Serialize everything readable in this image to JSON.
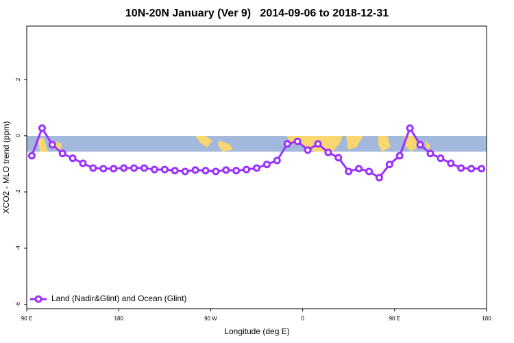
{
  "chart_data": {
    "type": "line",
    "title": "10N-20N January (Ver 9)   2014-09-06 to 2018-12-31",
    "xlabel": "Longitude (deg E)",
    "ylabel": "XCO2 - MLO trend (ppm)",
    "xlim": [
      90,
      540
    ],
    "ylim": [
      -6.15,
      3.9
    ],
    "xticks": [
      {
        "value": 90,
        "label": "90 E"
      },
      {
        "value": 180,
        "label": "180"
      },
      {
        "value": 270,
        "label": "90 W"
      },
      {
        "value": 360,
        "label": "0"
      },
      {
        "value": 450,
        "label": "90 E"
      },
      {
        "value": 540,
        "label": "180"
      }
    ],
    "yticks": [
      -6,
      -4,
      -2,
      0,
      2
    ],
    "x": [
      95,
      105,
      115,
      125,
      135,
      145,
      155,
      165,
      175,
      185,
      195,
      205,
      215,
      225,
      235,
      245,
      255,
      265,
      275,
      285,
      295,
      305,
      315,
      325,
      335,
      345,
      355,
      365,
      375,
      385,
      395,
      405,
      415,
      425,
      435,
      445,
      455,
      465,
      475,
      485,
      495,
      505,
      515,
      525,
      535
    ],
    "series": [
      {
        "name": "Land (Nadir&Glint) and Ocean (Glint)",
        "color": "#9b30ff",
        "values": [
          -0.71,
          0.27,
          -0.32,
          -0.63,
          -0.8,
          -0.98,
          -1.15,
          -1.17,
          -1.17,
          -1.15,
          -1.15,
          -1.15,
          -1.2,
          -1.2,
          -1.24,
          -1.27,
          -1.22,
          -1.24,
          -1.27,
          -1.22,
          -1.24,
          -1.2,
          -1.15,
          -1.02,
          -0.88,
          -0.29,
          -0.2,
          -0.51,
          -0.29,
          -0.59,
          -0.78,
          -1.27,
          -1.17,
          -1.27,
          -1.49,
          -1.02,
          -0.71,
          0.27,
          -0.32,
          -0.63,
          -0.8,
          -0.98,
          -1.15,
          -1.17,
          -1.17
        ]
      }
    ]
  }
}
